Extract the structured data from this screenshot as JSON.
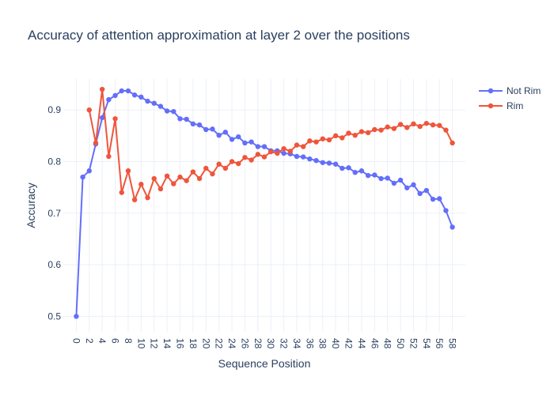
{
  "chart_data": {
    "type": "line",
    "title": "Accuracy of attention approximation at layer 2 over the positions",
    "xlabel": "Sequence Position",
    "ylabel": "Accuracy",
    "xlim": [
      -2,
      60
    ],
    "ylim": [
      0.47,
      0.96
    ],
    "xticks": [
      0,
      2,
      4,
      6,
      8,
      10,
      12,
      14,
      16,
      18,
      20,
      22,
      24,
      26,
      28,
      30,
      32,
      34,
      36,
      38,
      40,
      42,
      44,
      46,
      48,
      50,
      52,
      54,
      56,
      58
    ],
    "yticks": [
      0.5,
      0.6,
      0.7,
      0.8,
      0.9
    ],
    "legend_position": "top-right",
    "grid": true,
    "series": [
      {
        "name": "Not Rim",
        "color": "#636efa",
        "x": [
          0,
          1,
          2,
          3,
          4,
          5,
          6,
          7,
          8,
          9,
          10,
          11,
          12,
          13,
          14,
          15,
          16,
          17,
          18,
          19,
          20,
          21,
          22,
          23,
          24,
          25,
          26,
          27,
          28,
          29,
          30,
          31,
          32,
          33,
          34,
          35,
          36,
          37,
          38,
          39,
          40,
          41,
          42,
          43,
          44,
          45,
          46,
          47,
          48,
          49,
          50,
          51,
          52,
          53,
          54,
          55,
          56,
          57,
          58
        ],
        "values": [
          0.5,
          0.77,
          0.782,
          0.834,
          0.885,
          0.92,
          0.928,
          0.937,
          0.937,
          0.929,
          0.925,
          0.917,
          0.913,
          0.907,
          0.898,
          0.897,
          0.883,
          0.882,
          0.873,
          0.871,
          0.862,
          0.863,
          0.851,
          0.857,
          0.843,
          0.848,
          0.836,
          0.838,
          0.829,
          0.829,
          0.821,
          0.821,
          0.816,
          0.815,
          0.81,
          0.809,
          0.805,
          0.802,
          0.798,
          0.797,
          0.795,
          0.787,
          0.788,
          0.779,
          0.782,
          0.773,
          0.774,
          0.767,
          0.768,
          0.758,
          0.764,
          0.749,
          0.755,
          0.738,
          0.744,
          0.727,
          0.728,
          0.705,
          0.673
        ]
      },
      {
        "name": "Rim",
        "color": "#ef553b",
        "x": [
          2,
          3,
          4,
          5,
          6,
          7,
          8,
          9,
          10,
          11,
          12,
          13,
          14,
          15,
          16,
          17,
          18,
          19,
          20,
          21,
          22,
          23,
          24,
          25,
          26,
          27,
          28,
          29,
          30,
          31,
          32,
          33,
          34,
          35,
          36,
          37,
          38,
          39,
          40,
          41,
          42,
          43,
          44,
          45,
          46,
          47,
          48,
          49,
          50,
          51,
          52,
          53,
          54,
          55,
          56,
          57,
          58
        ],
        "values": [
          0.9,
          0.836,
          0.94,
          0.81,
          0.883,
          0.74,
          0.782,
          0.726,
          0.756,
          0.73,
          0.767,
          0.747,
          0.772,
          0.757,
          0.77,
          0.763,
          0.78,
          0.767,
          0.787,
          0.776,
          0.795,
          0.787,
          0.8,
          0.796,
          0.808,
          0.803,
          0.814,
          0.809,
          0.819,
          0.816,
          0.825,
          0.82,
          0.832,
          0.829,
          0.84,
          0.838,
          0.844,
          0.842,
          0.85,
          0.846,
          0.855,
          0.851,
          0.858,
          0.856,
          0.862,
          0.861,
          0.867,
          0.864,
          0.872,
          0.866,
          0.873,
          0.868,
          0.874,
          0.871,
          0.87,
          0.861,
          0.836
        ]
      }
    ]
  }
}
